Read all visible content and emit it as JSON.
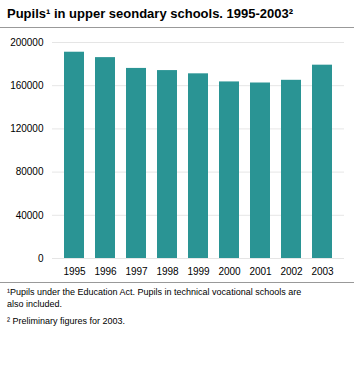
{
  "chart_data": {
    "type": "bar",
    "title": "Pupils¹ in upper seondary schools. 1995-2003²",
    "categories": [
      "1995",
      "1996",
      "1997",
      "1998",
      "1999",
      "2000",
      "2001",
      "2002",
      "2003"
    ],
    "values": [
      191000,
      186000,
      176000,
      174000,
      171000,
      163500,
      162500,
      165000,
      179000
    ],
    "color": "#2a9494",
    "ylim": [
      0,
      200000
    ],
    "yticks": [
      0,
      40000,
      80000,
      120000,
      160000,
      200000
    ],
    "grid": true,
    "annotations": [
      "¹Pupils under the Education Act. Pupils in technical vocational schools are\nalso included.",
      "² Preliminary figures for 2003."
    ]
  }
}
